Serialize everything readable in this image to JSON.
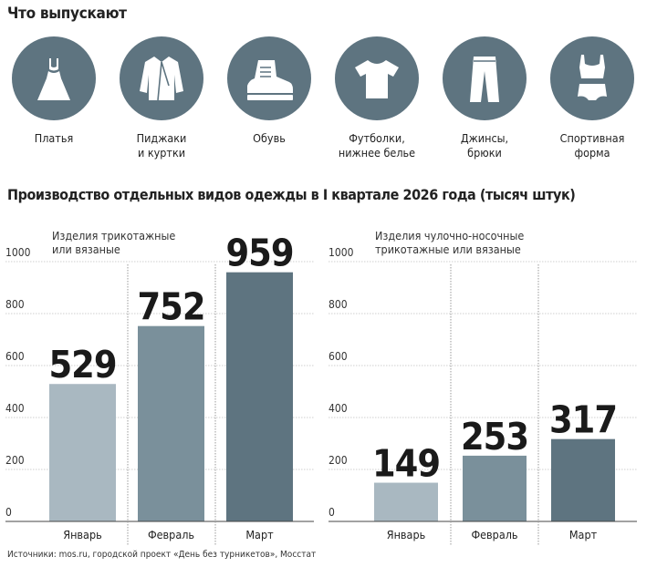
{
  "heading_products": "Что выпускают",
  "categories": [
    {
      "label": "Платья",
      "icon": "dress-icon"
    },
    {
      "label": "Пиджаки\nи куртки",
      "icon": "jacket-icon"
    },
    {
      "label": "Обувь",
      "icon": "boot-icon"
    },
    {
      "label": "Футболки,\nнижнее белье",
      "icon": "tshirt-icon"
    },
    {
      "label": "Джинсы,\nбрюки",
      "icon": "trousers-icon"
    },
    {
      "label": "Спортивная\nформа",
      "icon": "sportswear-icon"
    }
  ],
  "heading_chart": "Производство отдельных видов одежды в I квартале 2026 года (тысяч штук)",
  "colors": {
    "icon_circle": "#5e7480",
    "bar_jan": "#a9b8c1",
    "bar_feb": "#7a909b",
    "bar_mar": "#5e7480"
  },
  "chart_data": [
    {
      "type": "bar",
      "title": "Изделия трикотажные\nили вязаные",
      "categories": [
        "Январь",
        "Февраль",
        "Март"
      ],
      "values": [
        529,
        752,
        959
      ],
      "value_labels": [
        "529",
        "752",
        "959"
      ],
      "ylim": [
        0,
        1000
      ],
      "yticks": [
        "0",
        "200",
        "400",
        "600",
        "800",
        "1000"
      ],
      "grid": true
    },
    {
      "type": "bar",
      "title": "Изделия чулочно-носочные\nтрикотажные или вязаные",
      "categories": [
        "Январь",
        "Февраль",
        "Март"
      ],
      "values": [
        149,
        253,
        317
      ],
      "value_labels": [
        "149",
        "253",
        "317"
      ],
      "ylim": [
        0,
        1000
      ],
      "yticks": [
        "0",
        "200",
        "400",
        "600",
        "800",
        "1000"
      ],
      "grid": true
    }
  ],
  "source": "Источники: mos.ru, городской проект «День без турникетов», Мосстат"
}
